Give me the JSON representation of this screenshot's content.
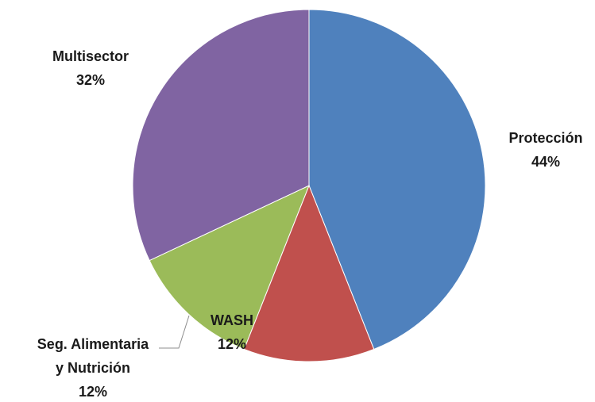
{
  "chart_data": {
    "type": "pie",
    "title": "",
    "slices": [
      {
        "name": "Protección",
        "label_lines": [
          "Protección"
        ],
        "value": 44,
        "value_label": "44%",
        "color": "#4f81bd"
      },
      {
        "name": "WASH",
        "label_lines": [
          "WASH"
        ],
        "value": 12,
        "value_label": "12%",
        "color": "#c0504d"
      },
      {
        "name": "Seg. Alimentaria y Nutrición",
        "label_lines": [
          "Seg. Alimentaria",
          "y Nutrición"
        ],
        "value": 12,
        "value_label": "12%",
        "color": "#9bbb59"
      },
      {
        "name": "Multisector",
        "label_lines": [
          "Multisector"
        ],
        "value": 32,
        "value_label": "32%",
        "color": "#8064a2"
      }
    ],
    "start_angle": "12 o'clock",
    "direction": "clockwise",
    "legend": "none",
    "data_labels": "outside"
  }
}
